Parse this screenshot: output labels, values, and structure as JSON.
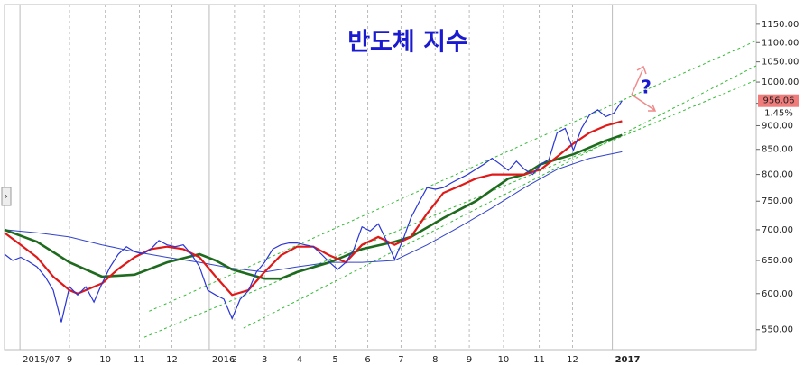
{
  "chart_data": {
    "type": "line",
    "title": "반도체 지수",
    "log_scale": true,
    "xlim": [
      0,
      92.5
    ],
    "ylim": [
      524,
      1206
    ],
    "xticks": [
      {
        "value": 1.9,
        "label": "2015/07"
      },
      {
        "value": 8,
        "label": "9"
      },
      {
        "value": 12.4,
        "label": "10"
      },
      {
        "value": 16.6,
        "label": "11"
      },
      {
        "value": 20.6,
        "label": "12"
      },
      {
        "value": 25.2,
        "label": "2016"
      },
      {
        "value": 28.3,
        "label": "2"
      },
      {
        "value": 32,
        "label": "3"
      },
      {
        "value": 36.3,
        "label": "4"
      },
      {
        "value": 40.7,
        "label": "5"
      },
      {
        "value": 44.7,
        "label": "6"
      },
      {
        "value": 48.8,
        "label": "7"
      },
      {
        "value": 53,
        "label": "8"
      },
      {
        "value": 57.2,
        "label": "9"
      },
      {
        "value": 61.4,
        "label": "10"
      },
      {
        "value": 65.8,
        "label": "11"
      },
      {
        "value": 69.9,
        "label": "12"
      },
      {
        "value": 74.8,
        "label": "2017"
      }
    ],
    "yticks": [
      {
        "value": 550,
        "label": "550.00"
      },
      {
        "value": 600,
        "label": "600.00"
      },
      {
        "value": 650,
        "label": "650.00"
      },
      {
        "value": 700,
        "label": "700.00"
      },
      {
        "value": 750,
        "label": "750.00"
      },
      {
        "value": 800,
        "label": "800.00"
      },
      {
        "value": 850,
        "label": "850.00"
      },
      {
        "value": 900,
        "label": "900.00"
      },
      {
        "value": 950,
        "label": "950.00"
      },
      {
        "value": 1000,
        "label": "1000.00"
      },
      {
        "value": 1050,
        "label": "1050.00"
      },
      {
        "value": 1100,
        "label": "1100.00"
      },
      {
        "value": 1150,
        "label": "1150.00"
      }
    ],
    "series": [
      {
        "color": "#2a35d6",
        "width": 1.2,
        "x": [
          0,
          1,
          2,
          3,
          4,
          5,
          6,
          7,
          8,
          9,
          10,
          11,
          12,
          13,
          14,
          15,
          16,
          17,
          18,
          19,
          20,
          21,
          22,
          23,
          24,
          25,
          26,
          27,
          28,
          29,
          30,
          31,
          32,
          33,
          34,
          35,
          36,
          37,
          38,
          39,
          40,
          41,
          42,
          43,
          44,
          45,
          46,
          47,
          48,
          49,
          50,
          51,
          52,
          53,
          54,
          55,
          56,
          57,
          58,
          59,
          60,
          61,
          62,
          63,
          64,
          65,
          66,
          67,
          68,
          69,
          70,
          71,
          72,
          73,
          74,
          75,
          76
        ],
        "values": [
          660,
          650,
          655,
          648,
          640,
          625,
          605,
          560,
          610,
          598,
          610,
          588,
          615,
          640,
          660,
          672,
          664,
          660,
          668,
          682,
          675,
          672,
          675,
          660,
          640,
          605,
          598,
          592,
          565,
          592,
          604,
          632,
          647,
          668,
          675,
          678,
          678,
          675,
          672,
          660,
          647,
          636,
          647,
          668,
          705,
          698,
          710,
          682,
          652,
          682,
          720,
          748,
          775,
          772,
          775,
          784,
          792,
          800,
          810,
          820,
          832,
          820,
          808,
          826,
          810,
          800,
          820,
          830,
          885,
          894,
          848,
          894,
          924,
          935,
          920,
          928,
          956
        ]
      },
      {
        "color": "#e01818",
        "width": 2.2,
        "x": [
          0,
          2,
          4,
          6,
          8,
          9,
          10,
          12,
          14,
          16,
          18,
          20,
          22,
          24,
          26,
          28,
          30,
          32,
          34,
          36,
          38,
          40,
          42,
          44,
          46,
          48,
          50,
          52,
          54,
          56,
          58,
          60,
          62,
          64,
          66,
          68,
          70,
          72,
          74,
          76
        ],
        "values": [
          695,
          675,
          655,
          625,
          605,
          600,
          605,
          615,
          637,
          655,
          668,
          672,
          668,
          655,
          625,
          598,
          605,
          632,
          658,
          672,
          672,
          658,
          647,
          675,
          688,
          675,
          688,
          728,
          765,
          778,
          792,
          800,
          800,
          800,
          810,
          835,
          862,
          885,
          900,
          910
        ]
      },
      {
        "color": "#1e6a1e",
        "width": 2.6,
        "x": [
          0,
          4,
          8,
          12,
          16,
          20,
          24,
          26,
          28,
          32,
          34,
          36,
          40,
          44,
          48,
          50,
          54,
          58,
          62,
          64,
          66,
          70,
          74,
          76
        ],
        "values": [
          700,
          680,
          647,
          625,
          628,
          647,
          660,
          650,
          636,
          622,
          622,
          632,
          647,
          668,
          680,
          688,
          720,
          750,
          792,
          800,
          820,
          840,
          868,
          880
        ]
      },
      {
        "color": "#3344cc",
        "width": 1,
        "x": [
          0,
          4,
          8,
          12,
          16,
          20,
          24,
          28,
          32,
          36,
          40,
          44,
          48,
          52,
          56,
          60,
          64,
          68,
          72,
          76
        ],
        "values": [
          700,
          695,
          688,
          675,
          664,
          655,
          647,
          638,
          632,
          640,
          647,
          647,
          650,
          675,
          705,
          738,
          775,
          810,
          832,
          845
        ]
      }
    ],
    "channels": [
      {
        "color": "#33bb33",
        "x": [
          17.2,
          92.5
        ],
        "values": [
          540,
          1005
        ]
      },
      {
        "color": "#33bb33",
        "x": [
          29.4,
          92.5
        ],
        "values": [
          552,
          1040
        ]
      },
      {
        "color": "#33bb33",
        "x": [
          17.8,
          92.5
        ],
        "values": [
          575,
          1105
        ]
      }
    ],
    "last_price": {
      "value": 956.06,
      "label": "956.06"
    },
    "change": "1.45%",
    "annotation": "?"
  }
}
